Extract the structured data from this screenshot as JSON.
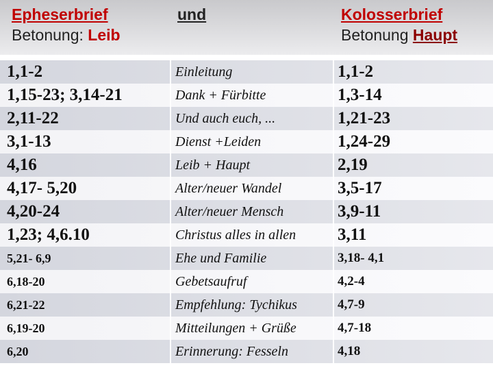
{
  "header": {
    "left": {
      "title": "Epheserbrief",
      "label": "Betonung:",
      "emphasis": "Leib"
    },
    "middle": {
      "title": "und"
    },
    "right": {
      "title": "Kolosserbrief",
      "label": "Betonung",
      "emphasis": "Haupt"
    }
  },
  "table": {
    "rows": [
      [
        "1,1-2",
        "Einleitung",
        "1,1-2"
      ],
      [
        "1,15-23; 3,14-21",
        "Dank + Fürbitte",
        "1,3-14"
      ],
      [
        "2,11-22",
        "Und auch euch, ...",
        "1,21-23"
      ],
      [
        "3,1-13",
        "Dienst +Leiden",
        "1,24-29"
      ],
      [
        "4,16",
        "Leib + Haupt",
        "2,19"
      ],
      [
        "4,17- 5,20",
        "Alter/neuer Wandel",
        "3,5-17"
      ],
      [
        "4,20-24",
        "Alter/neuer Mensch",
        "3,9-11"
      ],
      [
        "1,23; 4,6.10",
        "Christus alles in allen",
        "3,11"
      ],
      [
        "5,21- 6,9",
        "Ehe und Familie",
        "3,18- 4,1"
      ],
      [
        "6,18-20",
        "Gebetsaufruf",
        "4,2-4"
      ],
      [
        "6,21-22",
        "Empfehlung: Tychikus",
        "4,7-9"
      ],
      [
        "6,19-20",
        "Mitteilungen + Grüße",
        "4,7-18"
      ],
      [
        "6,20",
        "Erinnerung: Fesseln",
        "4,18"
      ]
    ]
  }
}
